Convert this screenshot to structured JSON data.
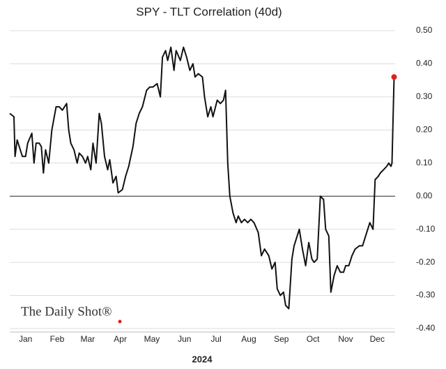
{
  "chart_data": {
    "type": "line",
    "title": "SPY - TLT Correlation (40d)",
    "xlabel": "2024",
    "source_logo": "The Daily Shot®",
    "x": [
      0,
      4,
      5,
      7,
      9,
      12,
      15,
      17,
      21,
      23,
      25,
      28,
      30,
      32,
      34,
      37,
      40,
      44,
      47,
      50,
      54,
      56,
      58,
      61,
      64,
      66,
      69,
      72,
      74,
      77,
      79,
      82,
      85,
      87,
      90,
      93,
      95,
      98,
      101,
      103,
      107,
      110,
      113,
      117,
      120,
      123,
      126,
      130,
      133,
      136,
      140,
      143,
      145,
      148,
      150,
      153,
      156,
      158,
      162,
      165,
      168,
      171,
      174,
      176,
      179,
      183,
      185,
      188,
      191,
      193,
      197,
      200,
      203,
      205,
      207,
      209,
      212,
      215,
      217,
      220,
      223,
      226,
      229,
      232,
      236,
      239,
      242,
      246,
      249,
      252,
      254,
      257,
      260,
      262,
      265,
      268,
      270,
      273,
      275,
      278,
      281,
      284,
      287,
      289,
      292,
      295,
      298,
      300,
      303,
      305,
      308,
      311,
      314,
      317,
      319,
      322,
      325,
      328,
      332,
      335,
      338,
      342,
      345,
      347,
      350,
      352,
      355,
      358,
      360,
      362,
      363,
      365
    ],
    "series": [
      {
        "color": "#111111",
        "highlight_last_color": "#e0201c",
        "values": [
          0.25,
          0.24,
          0.12,
          0.17,
          0.15,
          0.12,
          0.12,
          0.16,
          0.19,
          0.1,
          0.16,
          0.16,
          0.15,
          0.07,
          0.14,
          0.1,
          0.2,
          0.27,
          0.27,
          0.26,
          0.28,
          0.2,
          0.16,
          0.14,
          0.1,
          0.13,
          0.12,
          0.1,
          0.12,
          0.08,
          0.16,
          0.1,
          0.25,
          0.22,
          0.12,
          0.08,
          0.11,
          0.04,
          0.06,
          0.01,
          0.02,
          0.06,
          0.09,
          0.15,
          0.22,
          0.25,
          0.27,
          0.32,
          0.33,
          0.33,
          0.34,
          0.3,
          0.42,
          0.44,
          0.41,
          0.45,
          0.38,
          0.44,
          0.41,
          0.45,
          0.42,
          0.38,
          0.4,
          0.36,
          0.37,
          0.36,
          0.3,
          0.24,
          0.27,
          0.24,
          0.29,
          0.28,
          0.29,
          0.32,
          0.1,
          0.0,
          -0.05,
          -0.08,
          -0.06,
          -0.08,
          -0.07,
          -0.08,
          -0.07,
          -0.08,
          -0.11,
          -0.18,
          -0.16,
          -0.18,
          -0.22,
          -0.2,
          -0.28,
          -0.3,
          -0.29,
          -0.33,
          -0.34,
          -0.19,
          -0.15,
          -0.12,
          -0.1,
          -0.16,
          -0.21,
          -0.14,
          -0.19,
          -0.2,
          -0.19,
          0.0,
          -0.01,
          -0.1,
          -0.12,
          -0.29,
          -0.24,
          -0.21,
          -0.23,
          -0.23,
          -0.21,
          -0.21,
          -0.18,
          -0.16,
          -0.15,
          -0.15,
          -0.12,
          -0.08,
          -0.1,
          0.05,
          0.06,
          0.07,
          0.08,
          0.09,
          0.1,
          0.09,
          0.1,
          0.36
        ]
      }
    ],
    "xlim": [
      0,
      366
    ],
    "xticks": [
      {
        "value": 15,
        "label": "Jan"
      },
      {
        "value": 45,
        "label": "Feb"
      },
      {
        "value": 74,
        "label": "Mar"
      },
      {
        "value": 105,
        "label": "Apr"
      },
      {
        "value": 135,
        "label": "May"
      },
      {
        "value": 166,
        "label": "Jun"
      },
      {
        "value": 196,
        "label": "Jul"
      },
      {
        "value": 227,
        "label": "Aug"
      },
      {
        "value": 258,
        "label": "Sep"
      },
      {
        "value": 288,
        "label": "Oct"
      },
      {
        "value": 319,
        "label": "Nov"
      },
      {
        "value": 349,
        "label": "Dec"
      }
    ],
    "ylim": [
      -0.4,
      0.5
    ],
    "yticks": [
      {
        "value": 0.5,
        "label": "0.50"
      },
      {
        "value": 0.4,
        "label": "0.40"
      },
      {
        "value": 0.3,
        "label": "0.30"
      },
      {
        "value": 0.2,
        "label": "0.20"
      },
      {
        "value": 0.1,
        "label": "0.10"
      },
      {
        "value": 0,
        "label": "0.00"
      },
      {
        "value": -0.1,
        "label": "-0.10"
      },
      {
        "value": -0.2,
        "label": "-0.20"
      },
      {
        "value": -0.3,
        "label": "-0.30"
      },
      {
        "value": -0.4,
        "label": "-0.40"
      }
    ],
    "grid": true
  }
}
